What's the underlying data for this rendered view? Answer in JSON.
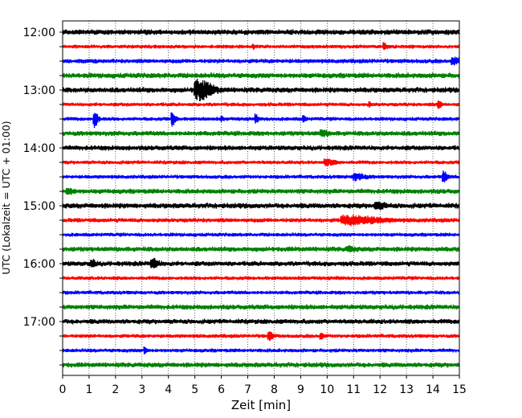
{
  "chart_data": {
    "type": "line",
    "xlabel": "Zeit  [min]",
    "ylabel": "UTC (Lokalzeit = UTC + 01:00)",
    "xlim": [
      0,
      15
    ],
    "x_ticks": [
      0,
      1,
      2,
      3,
      4,
      5,
      6,
      7,
      8,
      9,
      10,
      11,
      12,
      13,
      14,
      15
    ],
    "y_tick_labels": [
      "12:00",
      "13:00",
      "14:00",
      "15:00",
      "16:00",
      "17:00"
    ],
    "y_tick_traces": [
      0,
      4,
      8,
      12,
      16,
      20
    ],
    "grid": "vertical dotted lines at each minute",
    "trace_minutes": 15,
    "colors": [
      "#000000",
      "#ff0000",
      "#0000ff",
      "#008000"
    ],
    "series": [
      {
        "start": "12:00",
        "color": "#000000",
        "noise": 0.3,
        "events": []
      },
      {
        "start": "12:15",
        "color": "#ff0000",
        "noise": 0.22,
        "events": [
          {
            "t": 12.15,
            "amp": 0.45,
            "dur": 0.1
          },
          {
            "t": 7.2,
            "amp": 0.3,
            "dur": 0.05
          }
        ]
      },
      {
        "start": "12:30",
        "color": "#0000ff",
        "noise": 0.25,
        "events": [
          {
            "t": 14.8,
            "amp": 0.35,
            "dur": 0.3
          }
        ]
      },
      {
        "start": "12:45",
        "color": "#008000",
        "noise": 0.3,
        "events": []
      },
      {
        "start": "13:00",
        "color": "#000000",
        "noise": 0.3,
        "events": [
          {
            "t": 5.15,
            "amp": 1.25,
            "dur": 0.45
          }
        ]
      },
      {
        "start": "13:15",
        "color": "#ff0000",
        "noise": 0.22,
        "events": [
          {
            "t": 14.2,
            "amp": 0.45,
            "dur": 0.1
          },
          {
            "t": 11.6,
            "amp": 0.3,
            "dur": 0.05
          }
        ]
      },
      {
        "start": "13:30",
        "color": "#0000ff",
        "noise": 0.22,
        "events": [
          {
            "t": 1.2,
            "amp": 1.1,
            "dur": 0.12
          },
          {
            "t": 4.15,
            "amp": 0.9,
            "dur": 0.12
          },
          {
            "t": 7.3,
            "amp": 0.5,
            "dur": 0.08
          },
          {
            "t": 9.1,
            "amp": 0.35,
            "dur": 0.08
          },
          {
            "t": 6.0,
            "amp": 0.3,
            "dur": 0.05
          }
        ]
      },
      {
        "start": "13:45",
        "color": "#008000",
        "noise": 0.28,
        "events": [
          {
            "t": 9.8,
            "amp": 0.3,
            "dur": 0.2
          }
        ]
      },
      {
        "start": "14:00",
        "color": "#000000",
        "noise": 0.28,
        "events": []
      },
      {
        "start": "14:15",
        "color": "#ff0000",
        "noise": 0.22,
        "events": [
          {
            "t": 10.0,
            "amp": 0.3,
            "dur": 0.3
          }
        ]
      },
      {
        "start": "14:30",
        "color": "#0000ff",
        "noise": 0.22,
        "events": [
          {
            "t": 14.4,
            "amp": 0.75,
            "dur": 0.12
          },
          {
            "t": 11.1,
            "amp": 0.4,
            "dur": 0.3
          }
        ]
      },
      {
        "start": "14:45",
        "color": "#008000",
        "noise": 0.28,
        "events": [
          {
            "t": 0.2,
            "amp": 0.3,
            "dur": 0.2
          }
        ]
      },
      {
        "start": "15:00",
        "color": "#000000",
        "noise": 0.3,
        "events": [
          {
            "t": 11.9,
            "amp": 0.3,
            "dur": 0.3
          }
        ]
      },
      {
        "start": "15:15",
        "color": "#ff0000",
        "noise": 0.25,
        "events": [
          {
            "t": 10.9,
            "amp": 0.5,
            "dur": 1.0
          }
        ]
      },
      {
        "start": "15:30",
        "color": "#0000ff",
        "noise": 0.22,
        "events": []
      },
      {
        "start": "15:45",
        "color": "#008000",
        "noise": 0.28,
        "events": [
          {
            "t": 10.8,
            "amp": 0.25,
            "dur": 0.2
          }
        ]
      },
      {
        "start": "16:00",
        "color": "#000000",
        "noise": 0.28,
        "events": [
          {
            "t": 3.4,
            "amp": 0.55,
            "dur": 0.2
          },
          {
            "t": 1.1,
            "amp": 0.4,
            "dur": 0.15
          }
        ]
      },
      {
        "start": "16:15",
        "color": "#ff0000",
        "noise": 0.22,
        "events": []
      },
      {
        "start": "16:30",
        "color": "#0000ff",
        "noise": 0.22,
        "events": []
      },
      {
        "start": "16:45",
        "color": "#008000",
        "noise": 0.28,
        "events": []
      },
      {
        "start": "17:00",
        "color": "#000000",
        "noise": 0.28,
        "events": []
      },
      {
        "start": "17:15",
        "color": "#ff0000",
        "noise": 0.22,
        "events": [
          {
            "t": 7.8,
            "amp": 0.55,
            "dur": 0.12
          },
          {
            "t": 9.75,
            "amp": 0.45,
            "dur": 0.08
          }
        ]
      },
      {
        "start": "17:30",
        "color": "#0000ff",
        "noise": 0.22,
        "events": [
          {
            "t": 3.1,
            "amp": 0.4,
            "dur": 0.08
          }
        ]
      },
      {
        "start": "17:45",
        "color": "#008000",
        "noise": 0.28,
        "events": []
      }
    ]
  }
}
